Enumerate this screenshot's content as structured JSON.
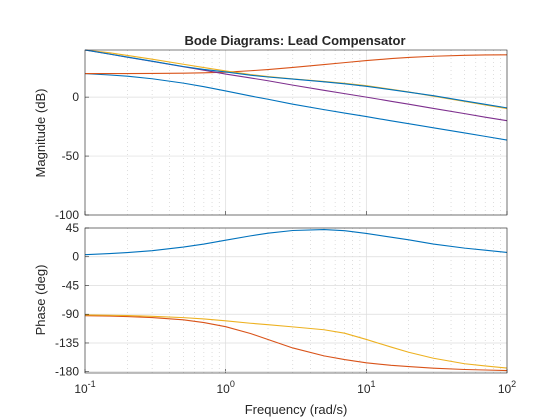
{
  "chart_data": {
    "type": "line",
    "title": "Bode Diagrams: Lead Compensator",
    "xlabel": "Frequency  (rad/s)",
    "x_scale": "log",
    "xlim": [
      0.1,
      100
    ],
    "x_ticks": [
      {
        "value": 0.1,
        "base": "10",
        "exp": "-1"
      },
      {
        "value": 1,
        "base": "10",
        "exp": "0"
      },
      {
        "value": 10,
        "base": "10",
        "exp": "1"
      },
      {
        "value": 100,
        "base": "10",
        "exp": "2"
      }
    ],
    "grid": true,
    "colors": [
      "#0072BD",
      "#D95319",
      "#EDB120",
      "#7E2F8E"
    ],
    "panels": [
      {
        "id": "magnitude",
        "ylabel": "Magnitude (dB)",
        "ylim": [
          -100,
          40
        ],
        "y_ticks": [
          -100,
          -50,
          0
        ],
        "y_tick_labels": [
          "-100",
          "-50",
          "0"
        ],
        "series": [
          {
            "x": [
              0.1,
              0.15,
              0.2,
              0.3,
              0.5,
              0.7,
              1,
              1.5,
              2,
              3,
              5,
              7,
              10,
              15,
              20,
              30,
              50,
              70,
              100
            ],
            "values": [
              20,
              18.8,
              17.8,
              15.6,
              11.9,
              8.9,
              5.3,
              1,
              -1.8,
              -6,
              -10.6,
              -13.5,
              -16.5,
              -20.1,
              -22.5,
              -26,
              -30.4,
              -33.3,
              -36.4
            ]
          },
          {
            "x": [
              0.1,
              0.15,
              0.2,
              0.3,
              0.5,
              0.7,
              1,
              1.5,
              2,
              3,
              5,
              7,
              10,
              15,
              20,
              30,
              50,
              70,
              100
            ],
            "values": [
              20,
              20,
              20,
              20.1,
              20.3,
              20.6,
              21.2,
              22.4,
              23.4,
              25.2,
              27.6,
              29.3,
              31,
              32.7,
              33.7,
              34.7,
              35.5,
              35.8,
              35.9
            ]
          },
          {
            "x": [
              0.1,
              0.15,
              0.2,
              0.3,
              0.5,
              0.7,
              1,
              1.5,
              2,
              3,
              5,
              7,
              10,
              15,
              20,
              30,
              50,
              70,
              100
            ],
            "values": [
              40,
              37.6,
              35.4,
              32.2,
              27.9,
              25.1,
              22.2,
              19.2,
              17.5,
              15.5,
              13.3,
              11.7,
              9.7,
              6.7,
              4.4,
              0.8,
              -3.7,
              -6.6,
              -9.7
            ]
          },
          {
            "x": [
              0.1,
              0.15,
              0.2,
              0.3,
              0.5,
              0.7,
              1,
              1.5,
              2,
              3,
              5,
              7,
              10,
              15,
              20,
              30,
              50,
              70,
              100
            ],
            "values": [
              40,
              36.5,
              33.9,
              30.4,
              25.8,
              22.9,
              19.6,
              16.3,
              13.9,
              10.2,
              5.8,
              3,
              0,
              -3.5,
              -6,
              -9.6,
              -14,
              -17,
              -20
            ]
          },
          {
            "x": [
              0.1,
              0.15,
              0.2,
              0.3,
              0.5,
              0.7,
              1,
              1.5,
              2,
              3,
              5,
              7,
              10,
              15,
              20,
              30,
              50,
              70,
              100
            ],
            "values": [
              40,
              36.5,
              34,
              30.5,
              26,
              23.5,
              21.4,
              18.6,
              17.1,
              15.3,
              13,
              11.3,
              9.2,
              6.3,
              4.2,
              1.2,
              -3.2,
              -6.1,
              -9.1
            ]
          }
        ]
      },
      {
        "id": "phase",
        "ylabel": "Phase (deg)",
        "ylim": [
          -182,
          45
        ],
        "y_ticks": [
          -180,
          -135,
          -90,
          -45,
          0,
          45
        ],
        "y_tick_labels": [
          "-180",
          "-135",
          "-90",
          "-45",
          "0",
          "45"
        ],
        "series": [
          {
            "x": [
              0.1,
              0.15,
              0.2,
              0.3,
              0.5,
              0.7,
              1,
              1.5,
              2,
              3,
              5,
              7,
              10,
              15,
              20,
              30,
              50,
              70,
              100
            ],
            "values": [
              3.3,
              4.9,
              6.5,
              9.5,
              15.1,
              19.9,
              25.9,
              32.7,
              36.9,
              41.1,
              42.6,
              40.8,
              36.5,
              30.6,
              26.5,
              19.8,
              13.5,
              10.2,
              6.8
            ]
          },
          {
            "x": [
              0.1,
              0.15,
              0.2,
              0.3,
              0.5,
              0.7,
              1,
              1.5,
              2,
              3,
              5,
              7,
              10,
              15,
              20,
              30,
              50,
              70,
              100
            ],
            "values": [
              -92.3,
              -92.9,
              -93.6,
              -95.2,
              -98.8,
              -103,
              -109.5,
              -120.2,
              -129.5,
              -142.8,
              -155.2,
              -161,
              -166,
              -170,
              -172,
              -174.4,
              -176.5,
              -177.3,
              -178.2
            ]
          },
          {
            "x": [
              0.1,
              0.15,
              0.2,
              0.3,
              0.5,
              0.7,
              1,
              1.5,
              2,
              3,
              5,
              7,
              10,
              15,
              20,
              30,
              50,
              70,
              100
            ],
            "values": [
              -91.1,
              -91.6,
              -92.1,
              -93.2,
              -95.3,
              -97.3,
              -100.3,
              -104.1,
              -106.3,
              -109.8,
              -114.3,
              -119.7,
              -129.5,
              -141.4,
              -149.5,
              -158.9,
              -167.5,
              -171,
              -174.3
            ]
          }
        ]
      }
    ]
  }
}
